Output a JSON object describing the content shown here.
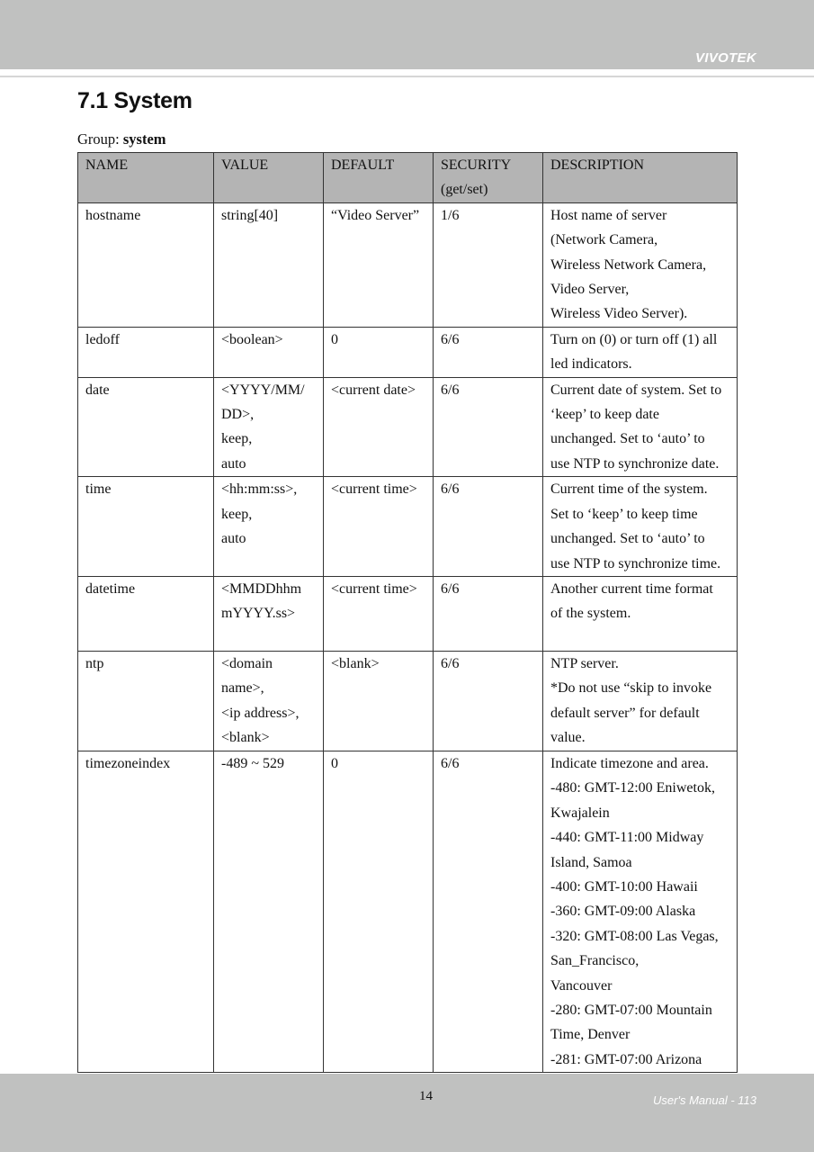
{
  "header": {
    "brand": "VIVOTEK"
  },
  "title": "7.1 System",
  "group": {
    "label": "Group: ",
    "name": "system"
  },
  "table": {
    "columns": [
      [
        "NAME"
      ],
      [
        "VALUE"
      ],
      [
        "DEFAULT"
      ],
      [
        "SECURITY",
        "(get/set)"
      ],
      [
        "DESCRIPTION"
      ]
    ],
    "rows": [
      {
        "name": "hostname",
        "value": [
          "string[40]"
        ],
        "default": "“Video Server”",
        "security": "1/6",
        "description": [
          "Host name of server",
          "(Network Camera,",
          "Wireless Network Camera,",
          "Video Server,",
          "Wireless Video Server)."
        ]
      },
      {
        "name": "ledoff",
        "value": [
          "<boolean>"
        ],
        "default": "0",
        "security": "6/6",
        "description": [
          "Turn on (0) or turn off (1) all",
          "led indicators."
        ]
      },
      {
        "name": "date",
        "value": [
          "<YYYY/MM/",
          "DD>,",
          "keep,",
          "auto"
        ],
        "default": "<current date>",
        "security": "6/6",
        "description": [
          "Current date of system. Set to",
          "‘keep’ to keep date",
          "unchanged. Set to ‘auto’ to",
          "use NTP to synchronize date."
        ]
      },
      {
        "name": "time",
        "value": [
          "<hh:mm:ss>,",
          "keep,",
          "auto"
        ],
        "default": "<current time>",
        "security": "6/6",
        "description": [
          "Current time of the system.",
          "Set to ‘keep’ to keep time",
          "unchanged. Set to ‘auto’ to",
          "use NTP to synchronize time."
        ]
      },
      {
        "name": "datetime",
        "value": [
          "<MMDDhhm",
          "mYYYY.ss>"
        ],
        "default": "<current time>",
        "security": "6/6",
        "description": [
          "Another current time format",
          "of the system."
        ]
      },
      {
        "name": "ntp",
        "value": [
          "<domain",
          "name>,",
          "<ip address>,",
          "<blank>"
        ],
        "default": "<blank>",
        "security": "6/6",
        "description": [
          "NTP server.",
          "*Do not use “skip to invoke",
          "default server” for default",
          "value."
        ]
      },
      {
        "name": "timezoneindex",
        "value": [
          "-489 ~ 529"
        ],
        "default": "0",
        "security": "6/6",
        "description": [
          "Indicate timezone and area.",
          "-480: GMT-12:00 Eniwetok,",
          "Kwajalein",
          "-440: GMT-11:00 Midway",
          "Island, Samoa",
          "-400: GMT-10:00 Hawaii",
          "-360: GMT-09:00 Alaska",
          "-320: GMT-08:00 Las Vegas,",
          "San_Francisco,",
          "Vancouver",
          "-280: GMT-07:00 Mountain",
          "Time, Denver",
          "-281: GMT-07:00 Arizona"
        ]
      }
    ]
  },
  "footer": {
    "page_number": "14",
    "manual": "User's Manual - 113"
  }
}
